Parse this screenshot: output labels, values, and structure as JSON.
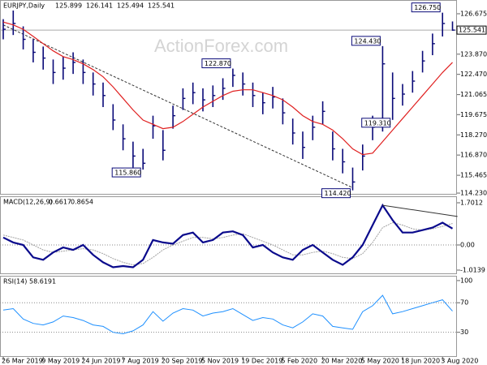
{
  "chart_data": [
    {
      "type": "ohlc",
      "title": "EURJPY,Daily",
      "open": 125.899,
      "watermark": "ActionForex.com",
      "color": "#0a0a78",
      "categories": [
        "26 Mar 2019",
        null,
        null,
        null,
        "9 May 2019",
        null,
        null,
        null,
        "24 Jun 2019",
        null,
        null,
        null,
        "7 Aug 2019",
        null,
        null,
        null,
        "20 Sep 2019",
        null,
        null,
        null,
        "5 Nov 2019",
        null,
        null,
        null,
        "19 Dec 2019",
        null,
        null,
        null,
        "5 Feb 2020",
        null,
        null,
        null,
        "20 Mar 2020",
        null,
        null,
        null,
        "5 May 2020",
        null,
        null,
        null,
        "18 Jun 2020",
        null,
        null,
        null,
        "3 Aug 2020",
        null
      ],
      "high": [
        126.3,
        126.9,
        125.8,
        124.9,
        124.4,
        123.5,
        123.7,
        124.0,
        123.5,
        122.6,
        121.9,
        120.4,
        119.0,
        117.8,
        117.3,
        119.6,
        118.6,
        120.3,
        121.5,
        121.9,
        121.5,
        121.7,
        122.2,
        122.87,
        122.6,
        121.9,
        121.2,
        121.6,
        120.8,
        119.4,
        118.5,
        119.6,
        120.6,
        118.5,
        117.3,
        116.0,
        117.6,
        119.6,
        124.43,
        122.6,
        121.8,
        122.7,
        124.1,
        125.3,
        126.75,
        126.141
      ],
      "low": [
        124.9,
        125.2,
        124.2,
        123.3,
        122.8,
        121.8,
        122.1,
        122.5,
        121.8,
        121.0,
        120.2,
        118.6,
        117.2,
        116.0,
        115.86,
        118.0,
        116.5,
        118.7,
        120.0,
        120.4,
        119.9,
        120.2,
        120.7,
        121.6,
        121.0,
        120.2,
        119.7,
        120.1,
        119.0,
        117.6,
        116.6,
        117.9,
        119.0,
        116.5,
        115.6,
        114.42,
        115.8,
        117.9,
        118.5,
        119.31,
        120.3,
        121.2,
        122.6,
        123.8,
        125.1,
        125.494
      ],
      "close": [
        125.6,
        126.0,
        124.9,
        124.0,
        123.6,
        122.6,
        122.9,
        123.3,
        122.6,
        121.8,
        121.0,
        119.3,
        118.0,
        116.8,
        116.3,
        118.9,
        117.2,
        119.6,
        120.8,
        121.2,
        120.7,
        121.0,
        121.5,
        122.4,
        121.8,
        121.0,
        120.5,
        120.9,
        119.8,
        118.4,
        117.4,
        118.8,
        119.9,
        117.3,
        116.4,
        115.0,
        116.8,
        118.8,
        123.2,
        120.8,
        121.1,
        122.0,
        123.4,
        124.6,
        126.0,
        125.541
      ],
      "ma": {
        "color": "#e02020",
        "values": [
          126.1,
          125.9,
          125.6,
          125.1,
          124.6,
          124.1,
          123.7,
          123.5,
          123.2,
          122.8,
          122.3,
          121.6,
          120.8,
          120.0,
          119.3,
          119.0,
          118.7,
          118.8,
          119.2,
          119.7,
          120.2,
          120.6,
          121.0,
          121.3,
          121.4,
          121.4,
          121.2,
          121.0,
          120.7,
          120.2,
          119.6,
          119.2,
          119.0,
          118.6,
          118.0,
          117.3,
          116.9,
          117.0,
          117.8,
          118.6,
          119.4,
          120.2,
          121.0,
          121.8,
          122.6,
          123.3
        ]
      },
      "ylim": [
        114.12,
        127.63
      ],
      "yticks": [
        126.675,
        {
          "value": 123.87,
          "label": "123.870"
        },
        {
          "value": 122.47,
          "label": "122.470"
        },
        121.065,
        119.675,
        {
          "value": 118.27,
          "label": "118.270"
        },
        {
          "value": 116.87,
          "label": "116.870"
        },
        115.465,
        {
          "value": 114.23,
          "label": "114.230"
        }
      ],
      "annotations": [
        {
          "value": 126.75,
          "label": "126.750",
          "side": "high"
        },
        {
          "value": 124.43,
          "label": "124.430",
          "side": "high"
        },
        {
          "value": 122.87,
          "label": "122.870",
          "side": "high"
        },
        {
          "value": 119.31,
          "label": "119.310",
          "side": "low"
        },
        {
          "value": 115.86,
          "label": "115.860",
          "side": "low"
        },
        {
          "value": 114.42,
          "label": "114.420",
          "side": "low"
        }
      ],
      "trendlines": [
        {
          "from": [
            0,
            125.9
          ],
          "to": [
            35,
            114.6
          ]
        }
      ]
    },
    {
      "type": "line",
      "title": "MACD(12,26,9)",
      "series": [
        {
          "color": "#0a0a8c",
          "values": [
            0.3,
            0.1,
            0.0,
            -0.5,
            -0.6,
            -0.3,
            -0.1,
            -0.2,
            0.0,
            -0.4,
            -0.7,
            -0.9,
            -0.85,
            -0.9,
            -0.6,
            0.2,
            0.1,
            0.05,
            0.4,
            0.5,
            0.1,
            0.2,
            0.5,
            0.55,
            0.4,
            -0.1,
            0.0,
            -0.3,
            -0.5,
            -0.6,
            -0.2,
            0.0,
            -0.3,
            -0.6,
            -0.8,
            -0.5,
            0.0,
            0.8,
            1.6,
            1.0,
            0.5,
            0.5,
            0.6,
            0.7,
            0.9,
            0.6617
          ]
        },
        {
          "color": "#a0a0a0",
          "values": [
            0.4,
            0.3,
            0.2,
            0.0,
            -0.2,
            -0.3,
            -0.25,
            -0.2,
            -0.15,
            -0.2,
            -0.35,
            -0.55,
            -0.7,
            -0.8,
            -0.75,
            -0.5,
            -0.2,
            0.0,
            0.15,
            0.3,
            0.3,
            0.25,
            0.3,
            0.4,
            0.45,
            0.3,
            0.15,
            0.0,
            -0.2,
            -0.4,
            -0.4,
            -0.3,
            -0.25,
            -0.35,
            -0.5,
            -0.55,
            -0.35,
            0.1,
            0.7,
            0.9,
            0.8,
            0.65,
            0.6,
            0.65,
            0.75,
            0.8654
          ]
        }
      ],
      "ylim": [
        -1.145,
        1.93
      ],
      "yticks": [
        1.7012,
        {
          "value": 0,
          "label": "0.00"
        },
        -1.0139
      ],
      "trendlines": [
        {
          "from": [
            38,
            1.6
          ],
          "to": [
            45.5,
            1.15
          ]
        }
      ]
    },
    {
      "type": "line",
      "title": "RSI(14)",
      "series": [
        {
          "color": "#1e90ff",
          "values": [
            60,
            62,
            48,
            42,
            40,
            44,
            52,
            50,
            46,
            40,
            38,
            30,
            28,
            32,
            40,
            58,
            45,
            56,
            62,
            60,
            52,
            56,
            58,
            62,
            54,
            46,
            50,
            48,
            40,
            36,
            44,
            55,
            52,
            38,
            36,
            34,
            58,
            66,
            80,
            55,
            58,
            62,
            66,
            70,
            74,
            58.6191
          ]
        }
      ],
      "ylim": [
        -3.3,
        105.4
      ],
      "yticks": [
        100,
        70,
        30
      ],
      "levels": [
        70,
        30
      ]
    }
  ]
}
